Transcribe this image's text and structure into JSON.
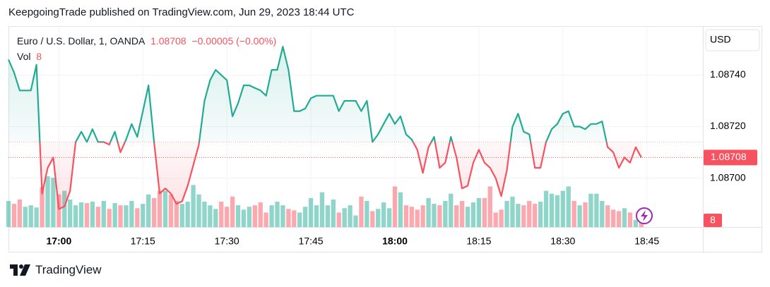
{
  "header": {
    "text": "KeepgoingTrade published on TradingView.com, Jun 29, 2023 18:44 UTC"
  },
  "footer": {
    "brand": "TradingView"
  },
  "chart_data": {
    "type": "line",
    "symbol": "Euro / U.S. Dollar, 1, OANDA",
    "last_price": 1.08708,
    "change": "−0.00005 (−0.00%)",
    "volume_label": "Vol",
    "last_volume": 8,
    "currency": "USD",
    "up_color": "#22ab94",
    "down_color": "#f7525f",
    "baseline": 1.08714,
    "grid": true,
    "ylim": [
      1.08681,
      1.08759
    ],
    "yticks": [
      {
        "value": 1.087,
        "label": "1.08700"
      },
      {
        "value": 1.0872,
        "label": "1.08720"
      },
      {
        "value": 1.0874,
        "label": "1.08740"
      }
    ],
    "xlim": [
      "16:51",
      "18:55"
    ],
    "xticks": [
      "17:00",
      "17:15",
      "17:30",
      "17:45",
      "18:00",
      "18:15",
      "18:30",
      "18:45"
    ],
    "x": [
      "16:51",
      "16:52",
      "16:53",
      "16:54",
      "16:55",
      "16:56",
      "16:57",
      "16:58",
      "16:59",
      "17:00",
      "17:01",
      "17:02",
      "17:03",
      "17:04",
      "17:05",
      "17:06",
      "17:07",
      "17:08",
      "17:09",
      "17:10",
      "17:11",
      "17:12",
      "17:13",
      "17:14",
      "17:15",
      "17:16",
      "17:17",
      "17:18",
      "17:19",
      "17:20",
      "17:21",
      "17:22",
      "17:23",
      "17:24",
      "17:25",
      "17:26",
      "17:27",
      "17:28",
      "17:29",
      "17:30",
      "17:31",
      "17:32",
      "17:33",
      "17:34",
      "17:35",
      "17:36",
      "17:37",
      "17:38",
      "17:39",
      "17:40",
      "17:41",
      "17:42",
      "17:43",
      "17:44",
      "17:45",
      "17:46",
      "17:47",
      "17:48",
      "17:49",
      "17:50",
      "17:51",
      "17:52",
      "17:53",
      "17:54",
      "17:55",
      "17:56",
      "17:57",
      "17:58",
      "17:59",
      "18:00",
      "18:01",
      "18:02",
      "18:03",
      "18:04",
      "18:05",
      "18:06",
      "18:07",
      "18:08",
      "18:09",
      "18:10",
      "18:11",
      "18:12",
      "18:13",
      "18:14",
      "18:15",
      "18:16",
      "18:17",
      "18:18",
      "18:19",
      "18:20",
      "18:21",
      "18:22",
      "18:23",
      "18:24",
      "18:25",
      "18:26",
      "18:27",
      "18:28",
      "18:29",
      "18:30",
      "18:31",
      "18:32",
      "18:33",
      "18:34",
      "18:35",
      "18:36",
      "18:37",
      "18:38",
      "18:39",
      "18:40",
      "18:41",
      "18:42",
      "18:43",
      "18:44"
    ],
    "values": [
      1.08746,
      1.08741,
      1.08734,
      1.08734,
      1.08734,
      1.08744,
      1.08694,
      1.08704,
      1.08708,
      1.08688,
      1.08689,
      1.08695,
      1.08714,
      1.08718,
      1.08714,
      1.08719,
      1.08714,
      1.08714,
      1.08713,
      1.08718,
      1.0871,
      1.08715,
      1.08721,
      1.08716,
      1.08726,
      1.08736,
      1.08714,
      1.08694,
      1.08696,
      1.08694,
      1.0869,
      1.08691,
      1.08697,
      1.08705,
      1.08713,
      1.0873,
      1.08738,
      1.08742,
      1.0874,
      1.08738,
      1.08724,
      1.08729,
      1.08736,
      1.08736,
      1.08735,
      1.08734,
      1.08732,
      1.08742,
      1.08742,
      1.08751,
      1.08742,
      1.08726,
      1.08726,
      1.08727,
      1.08731,
      1.08732,
      1.08732,
      1.08732,
      1.08732,
      1.08726,
      1.0873,
      1.0873,
      1.0873,
      1.08726,
      1.0873,
      1.08714,
      1.08717,
      1.08721,
      1.08725,
      1.08721,
      1.08724,
      1.08717,
      1.08715,
      1.08711,
      1.08702,
      1.08712,
      1.08716,
      1.08704,
      1.08706,
      1.08716,
      1.08708,
      1.08696,
      1.08697,
      1.08706,
      1.08711,
      1.08706,
      1.08704,
      1.087,
      1.08693,
      1.08703,
      1.0872,
      1.08725,
      1.08718,
      1.08717,
      1.08704,
      1.08704,
      1.08714,
      1.08719,
      1.08721,
      1.08725,
      1.08726,
      1.0872,
      1.0872,
      1.08719,
      1.08721,
      1.08721,
      1.08722,
      1.08712,
      1.0871,
      1.08704,
      1.08708,
      1.08706,
      1.08712,
      1.08708
    ],
    "volumes": [
      36,
      32,
      38,
      28,
      30,
      27,
      55,
      70,
      68,
      45,
      50,
      38,
      30,
      34,
      33,
      35,
      28,
      36,
      25,
      33,
      30,
      30,
      36,
      26,
      32,
      45,
      40,
      50,
      50,
      45,
      36,
      32,
      35,
      58,
      45,
      35,
      30,
      25,
      35,
      28,
      42,
      30,
      24,
      28,
      30,
      34,
      20,
      30,
      35,
      30,
      25,
      23,
      20,
      28,
      40,
      30,
      48,
      30,
      38,
      20,
      26,
      30,
      16,
      42,
      36,
      22,
      25,
      34,
      26,
      56,
      48,
      30,
      28,
      24,
      30,
      40,
      32,
      30,
      36,
      46,
      30,
      36,
      28,
      34,
      40,
      40,
      56,
      20,
      24,
      36,
      42,
      32,
      30,
      36,
      32,
      35,
      50,
      46,
      44,
      50,
      56,
      36,
      30,
      34,
      46,
      46,
      36,
      30,
      24,
      22,
      26,
      20,
      10,
      8
    ]
  }
}
